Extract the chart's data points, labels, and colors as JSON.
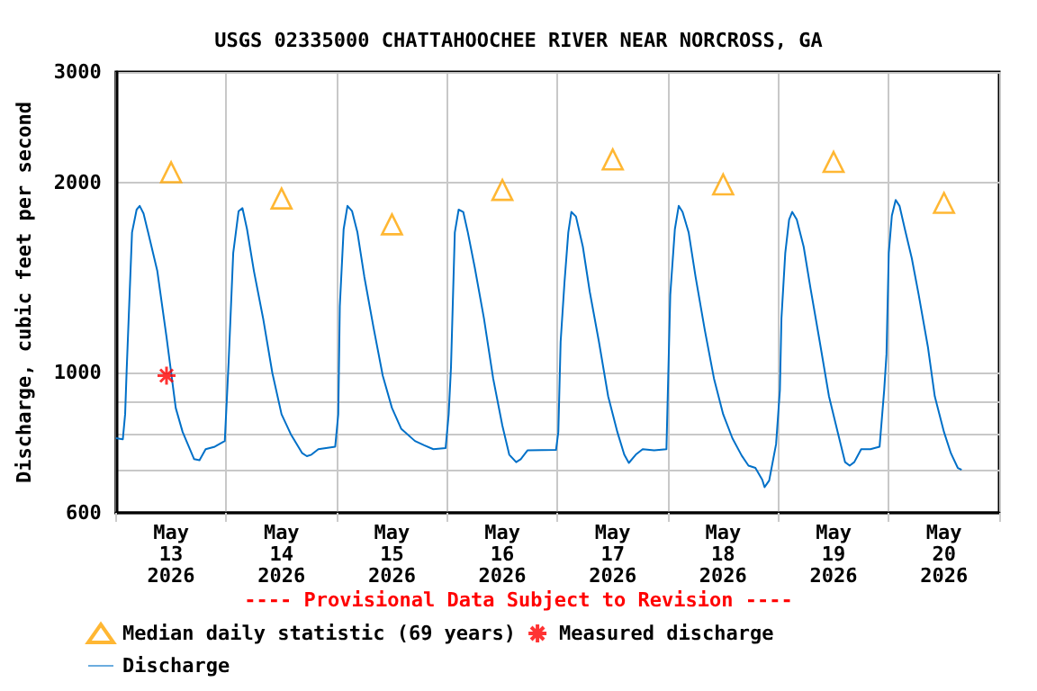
{
  "chart_data": {
    "type": "line",
    "title": "USGS 02335000 CHATTAHOOCHEE RIVER NEAR NORCROSS, GA",
    "ylabel": "Discharge, cubic feet per second",
    "annotations": [
      "---- Provisional Data Subject to Revision ----"
    ],
    "log": "y",
    "grid": true,
    "legend": "bottom",
    "xlim": [
      "2026-05-13",
      "2026-05-21"
    ],
    "xticks": [
      {
        "value": "2026-05-13",
        "label": null
      },
      {
        "value": "2026-05-13T12:00",
        "label": "May 13 2026"
      },
      {
        "value": "2026-05-14",
        "label": null
      },
      {
        "value": "2026-05-14T12:00",
        "label": "May 14 2026"
      },
      {
        "value": "2026-05-15",
        "label": null
      },
      {
        "value": "2026-05-15T12:00",
        "label": "May 15 2026"
      },
      {
        "value": "2026-05-16",
        "label": null
      },
      {
        "value": "2026-05-16T12:00",
        "label": "May 16 2026"
      },
      {
        "value": "2026-05-17",
        "label": null
      },
      {
        "value": "2026-05-17T12:00",
        "label": "May 17 2026"
      },
      {
        "value": "2026-05-18",
        "label": null
      },
      {
        "value": "2026-05-18T12:00",
        "label": "May 18 2026"
      },
      {
        "value": "2026-05-19",
        "label": null
      },
      {
        "value": "2026-05-19T12:00",
        "label": "May 19 2026"
      },
      {
        "value": "2026-05-20",
        "label": null
      },
      {
        "value": "2026-05-20T12:00",
        "label": "May 20 2026"
      },
      {
        "value": "2026-05-21",
        "label": null
      }
    ],
    "ylim": [
      600,
      3000
    ],
    "yticks": [
      600,
      {
        "value": 700,
        "label": null
      },
      {
        "value": 800,
        "label": null
      },
      {
        "value": 900,
        "label": null
      },
      1000,
      2000,
      3000
    ],
    "series": [
      {
        "name": "Median daily statistic (69 years)",
        "type": "scatter",
        "marker": "triangle",
        "color": "#ffa500",
        "x": [
          "2026-05-13T12:00",
          "2026-05-14T12:00",
          "2026-05-15T12:00",
          "2026-05-16T12:00",
          "2026-05-17T12:00",
          "2026-05-18T12:00",
          "2026-05-19T12:00",
          "2026-05-20T12:00"
        ],
        "values": [
          2080,
          1890,
          1720,
          1950,
          2180,
          1990,
          2160,
          1860
        ]
      },
      {
        "name": "Measured discharge",
        "type": "scatter",
        "marker": "cross",
        "color": "#ff0000",
        "x": [
          "2026-05-13T11:00"
        ],
        "values": [
          990
        ]
      },
      {
        "name": "Discharge",
        "marker": "none",
        "color": "#0070c8",
        "x": [
          "2026-05-13T00:00",
          "2026-05-13T01:30",
          "2026-05-13T02:00",
          "2026-05-13T02:20",
          "2026-05-13T03:30",
          "2026-05-13T04:30",
          "2026-05-13T05:10",
          "2026-05-13T06:00",
          "2026-05-13T07:00",
          "2026-05-13T09:00",
          "2026-05-13T11:00",
          "2026-05-13T13:00",
          "2026-05-13T14:30",
          "2026-05-13T17:00",
          "2026-05-13T18:10",
          "2026-05-13T19:30",
          "2026-05-13T21:30",
          "2026-05-13T23:40",
          "2026-05-14T00:30",
          "2026-05-14T01:30",
          "2026-05-14T02:40",
          "2026-05-14T03:30",
          "2026-05-14T04:30",
          "2026-05-14T06:00",
          "2026-05-14T08:00",
          "2026-05-14T10:00",
          "2026-05-14T12:00",
          "2026-05-14T14:00",
          "2026-05-14T16:30",
          "2026-05-14T17:30",
          "2026-05-14T18:30",
          "2026-05-14T20:00",
          "2026-05-14T23:40",
          "2026-05-15T00:20",
          "2026-05-15T00:40",
          "2026-05-15T01:30",
          "2026-05-15T02:20",
          "2026-05-15T03:20",
          "2026-05-15T04:30",
          "2026-05-15T06:00",
          "2026-05-15T08:00",
          "2026-05-15T10:00",
          "2026-05-15T12:00",
          "2026-05-15T14:00",
          "2026-05-15T17:00",
          "2026-05-15T19:00",
          "2026-05-15T21:00",
          "2026-05-15T23:40",
          "2026-05-16T00:20",
          "2026-05-16T00:50",
          "2026-05-16T01:40",
          "2026-05-16T02:30",
          "2026-05-16T03:30",
          "2026-05-16T04:30",
          "2026-05-16T06:00",
          "2026-05-16T08:00",
          "2026-05-16T10:00",
          "2026-05-16T12:00",
          "2026-05-16T13:30",
          "2026-05-16T15:00",
          "2026-05-16T16:00",
          "2026-05-16T17:30",
          "2026-05-16T23:40",
          "2026-05-17T00:10",
          "2026-05-17T00:40",
          "2026-05-17T01:30",
          "2026-05-17T02:20",
          "2026-05-17T03:00",
          "2026-05-17T04:00",
          "2026-05-17T05:30",
          "2026-05-17T07:00",
          "2026-05-17T09:00",
          "2026-05-17T11:00",
          "2026-05-17T13:00",
          "2026-05-17T14:30",
          "2026-05-17T15:30",
          "2026-05-17T17:00",
          "2026-05-17T18:30",
          "2026-05-17T21:00",
          "2026-05-17T23:40",
          "2026-05-18T00:30",
          "2026-05-18T01:30",
          "2026-05-18T02:20",
          "2026-05-18T03:10",
          "2026-05-18T04:30",
          "2026-05-18T06:00",
          "2026-05-18T08:00",
          "2026-05-18T10:00",
          "2026-05-18T12:00",
          "2026-05-18T14:00",
          "2026-05-18T16:00",
          "2026-05-18T17:30",
          "2026-05-18T19:00",
          "2026-05-18T20:30",
          "2026-05-18T21:00",
          "2026-05-18T22:00",
          "2026-05-18T23:30",
          "2026-05-19T00:20",
          "2026-05-19T00:40",
          "2026-05-19T01:30",
          "2026-05-19T02:20",
          "2026-05-19T03:00",
          "2026-05-19T04:00",
          "2026-05-19T05:30",
          "2026-05-19T07:00",
          "2026-05-19T09:00",
          "2026-05-19T11:00",
          "2026-05-19T13:00",
          "2026-05-19T14:30",
          "2026-05-19T15:30",
          "2026-05-19T16:30",
          "2026-05-19T18:00",
          "2026-05-19T20:00",
          "2026-05-19T22:00",
          "2026-05-19T23:00",
          "2026-05-19T23:30",
          "2026-05-20T00:00",
          "2026-05-20T00:40",
          "2026-05-20T01:30",
          "2026-05-20T02:20",
          "2026-05-20T03:30",
          "2026-05-20T05:00",
          "2026-05-20T06:30",
          "2026-05-20T08:30",
          "2026-05-20T10:00",
          "2026-05-20T12:00",
          "2026-05-20T13:30",
          "2026-05-20T15:00",
          "2026-05-20T15:50"
        ],
        "values": [
          788,
          785,
          860,
          1010,
          1670,
          1815,
          1840,
          1790,
          1670,
          1450,
          1140,
          880,
          806,
          730,
          727,
          757,
          764,
          780,
          1040,
          1550,
          1805,
          1825,
          1690,
          1450,
          1220,
          1000,
          860,
          800,
          746,
          738,
          742,
          757,
          764,
          860,
          1275,
          1690,
          1840,
          1805,
          1670,
          1420,
          1180,
          990,
          880,
          816,
          780,
          768,
          757,
          760,
          860,
          1020,
          1670,
          1815,
          1800,
          1670,
          1470,
          1220,
          980,
          825,
          742,
          722,
          730,
          754,
          755,
          806,
          1120,
          1390,
          1670,
          1800,
          1770,
          1585,
          1345,
          1120,
          918,
          806,
          742,
          720,
          742,
          757,
          754,
          757,
          1330,
          1690,
          1840,
          1800,
          1670,
          1420,
          1170,
          980,
          860,
          788,
          740,
          713,
          707,
          677,
          659,
          675,
          771,
          940,
          1220,
          1550,
          1750,
          1800,
          1750,
          1585,
          1360,
          1120,
          918,
          800,
          722,
          713,
          722,
          757,
          757,
          764,
          939,
          1070,
          1550,
          1775,
          1880,
          1840,
          1690,
          1520,
          1330,
          1100,
          918,
          806,
          746,
          707,
          702
        ]
      }
    ]
  }
}
